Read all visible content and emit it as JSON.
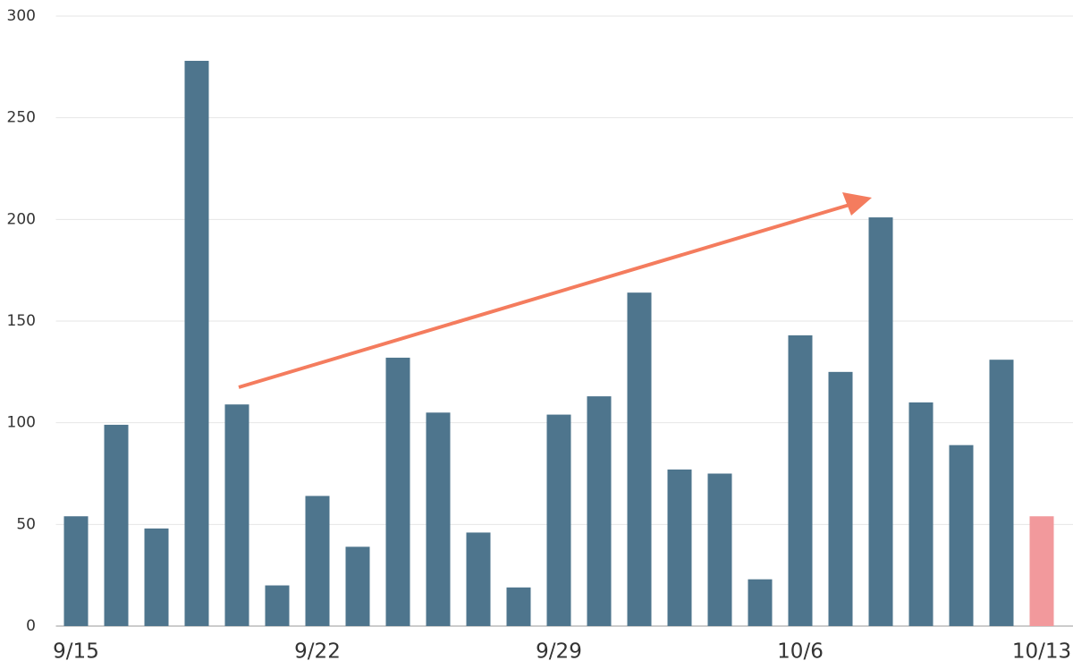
{
  "chart_data": {
    "type": "bar",
    "categories": [
      "9/15",
      null,
      null,
      null,
      null,
      null,
      "9/22",
      null,
      null,
      null,
      null,
      null,
      "9/29",
      null,
      null,
      null,
      null,
      null,
      "10/6",
      null,
      null,
      null,
      null,
      null,
      "10/13"
    ],
    "values": [
      54,
      99,
      48,
      278,
      109,
      20,
      64,
      39,
      132,
      105,
      46,
      19,
      104,
      113,
      164,
      77,
      75,
      23,
      143,
      125,
      201,
      110,
      89,
      131,
      54
    ],
    "colors": [
      "#4e758d",
      "#4e758d",
      "#4e758d",
      "#4e758d",
      "#4e758d",
      "#4e758d",
      "#4e758d",
      "#4e758d",
      "#4e758d",
      "#4e758d",
      "#4e758d",
      "#4e758d",
      "#4e758d",
      "#4e758d",
      "#4e758d",
      "#4e758d",
      "#4e758d",
      "#4e758d",
      "#4e758d",
      "#4e758d",
      "#4e758d",
      "#4e758d",
      "#4e758d",
      "#4e758d",
      "#f2999c"
    ],
    "ylim": [
      0,
      300
    ],
    "yticks": [
      0,
      50,
      100,
      150,
      200,
      250,
      300
    ],
    "grid": true
  }
}
